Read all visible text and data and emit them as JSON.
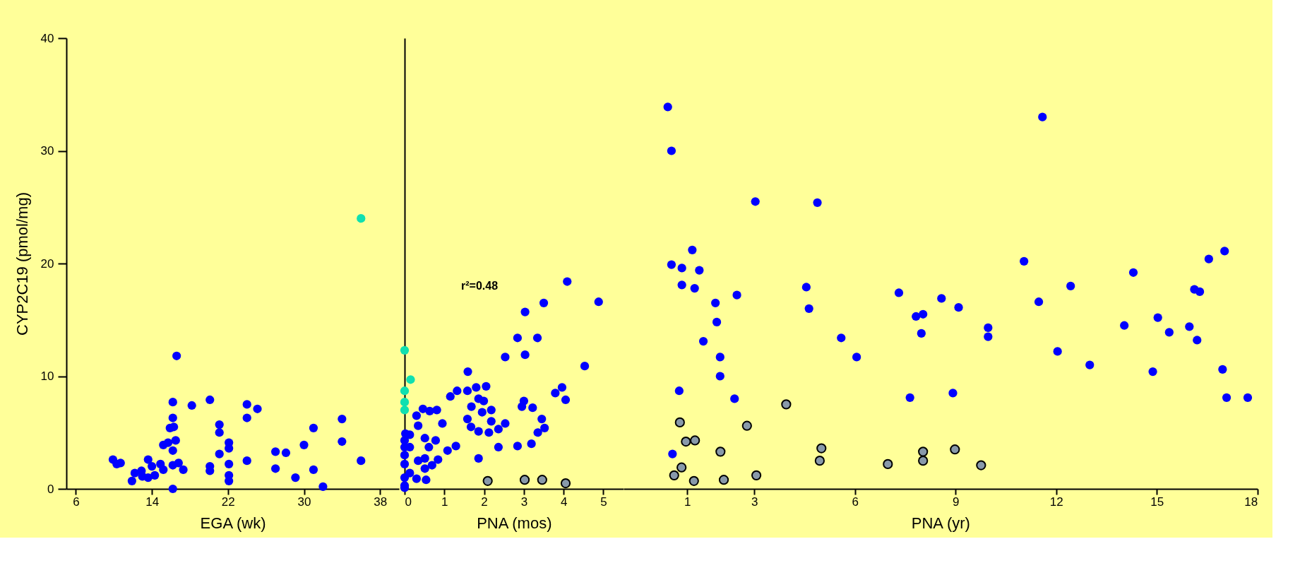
{
  "chart_data": [
    {
      "type": "scatter",
      "xlabel": "EGA (wk)",
      "ylabel": "CYP2C19 (pmol/mg)",
      "xlim": [
        5,
        40
      ],
      "xticks": [
        6,
        14,
        22,
        30,
        38
      ],
      "ylim": [
        0,
        40
      ],
      "yticks": [
        0,
        10,
        20,
        30,
        40
      ],
      "marker": "circle",
      "series": [
        {
          "color": "#0000ff",
          "x": [
            9.9,
            10.7,
            10.3,
            11.9,
            12.2,
            12.9,
            13.0,
            13.6,
            13.6,
            14.3,
            14.0,
            14.9,
            15.2,
            15.2,
            15.7,
            16.2,
            16.2,
            15.9,
            16.3,
            16.5,
            16.2,
            16.2,
            16.2,
            16.8,
            16.6,
            17.3,
            18.2,
            20.1,
            20.1,
            20.1,
            21.1,
            21.1,
            21.1,
            22.1,
            22.1,
            22.1,
            22.1,
            22.1,
            24.0,
            24.0,
            25.1,
            24.0,
            27.0,
            27.0,
            28.1,
            29.1,
            30.0,
            31.0,
            31.0,
            32.0,
            34.0,
            34.0,
            36.0
          ],
          "values": [
            2.6,
            2.3,
            2.2,
            0.7,
            1.4,
            1.6,
            1.1,
            2.6,
            1.0,
            1.2,
            2.0,
            2.2,
            1.7,
            3.9,
            4.1,
            7.7,
            6.3,
            5.4,
            5.5,
            4.3,
            3.4,
            2.1,
            0.0,
            2.3,
            11.8,
            1.7,
            7.4,
            7.9,
            2.0,
            1.6,
            5.7,
            5.0,
            3.1,
            4.1,
            3.6,
            2.2,
            1.2,
            0.7,
            7.5,
            6.3,
            7.1,
            2.5,
            3.3,
            1.8,
            3.2,
            1.0,
            3.9,
            5.4,
            1.7,
            0.2,
            6.2,
            4.2,
            2.5
          ]
        },
        {
          "color": "#10e0b0",
          "x": [
            36.0
          ],
          "values": [
            24.0
          ]
        }
      ]
    },
    {
      "type": "scatter",
      "xlabel": "PNA (mos)",
      "xlim": [
        0,
        5.5
      ],
      "xticks": [
        0,
        1,
        2,
        3,
        4,
        5
      ],
      "ylim": [
        0,
        40
      ],
      "tick_labels": "x",
      "marker": "circle",
      "annotations": [
        "r²=0.48"
      ],
      "series": [
        {
          "color": "#0000ff",
          "x": [
            0.02,
            0,
            0.13,
            0,
            0.13,
            0,
            0,
            0,
            0,
            0,
            0.13,
            0.3,
            0.3,
            0.34,
            0.46,
            0.63,
            0.81,
            0.95,
            0.51,
            0.61,
            0.78,
            0.34,
            0.51,
            0.51,
            0.69,
            0.84,
            0.54,
            1.08,
            1.29,
            1.15,
            1.32,
            1.59,
            1.58,
            1.8,
            2.05,
            1.86,
            1.99,
            1.68,
            1.95,
            2.18,
            1.58,
            1.67,
            1.86,
            2.18,
            2.12,
            2.36,
            2.53,
            1.86,
            2.36,
            2.53,
            2.84,
            3.03,
            3.03,
            3.34,
            3.5,
            2.84,
            3.0,
            2.95,
            3.22,
            3.45,
            3.52,
            3.35,
            3.19,
            3.79,
            3.96,
            4.05,
            4.09,
            4.53,
            4.88
          ],
          "values": [
            4.9,
            4.3,
            4.8,
            3.7,
            3.7,
            3.0,
            2.2,
            1.0,
            0.3,
            0.1,
            1.4,
            0.9,
            6.5,
            5.6,
            7.1,
            6.9,
            7.0,
            5.8,
            4.5,
            3.7,
            4.3,
            2.5,
            2.7,
            1.8,
            2.1,
            2.6,
            0.8,
            3.4,
            3.8,
            8.2,
            8.7,
            10.4,
            8.7,
            9.0,
            9.1,
            8.0,
            7.8,
            7.3,
            6.8,
            7.0,
            6.2,
            5.5,
            5.1,
            6.0,
            5.0,
            5.3,
            5.8,
            2.7,
            3.7,
            11.7,
            13.4,
            15.7,
            11.9,
            13.4,
            16.5,
            3.8,
            7.8,
            7.3,
            7.2,
            6.2,
            5.4,
            5.0,
            4.0,
            8.5,
            9.0,
            7.9,
            18.4,
            10.9,
            16.6
          ]
        },
        {
          "color": "#10e0b0",
          "x": [
            0,
            0.15,
            0,
            0,
            0
          ],
          "values": [
            12.3,
            9.7,
            8.7,
            7.7,
            7.0
          ]
        },
        {
          "color": "#8899aa",
          "x": [
            2.09,
            3.02,
            3.46,
            4.05
          ],
          "values": [
            0.7,
            0.8,
            0.8,
            0.5
          ]
        }
      ]
    },
    {
      "type": "scatter",
      "xlabel": "PNA (yr)",
      "xlim": [
        -0.9,
        18
      ],
      "xticks": [
        1,
        3,
        6,
        9,
        12,
        15,
        18
      ],
      "ylim": [
        0,
        40
      ],
      "tick_labels": "x",
      "marker": "circle",
      "series": [
        {
          "color": "#0000ff",
          "x": [
            0.42,
            0.53,
            0.53,
            0.84,
            0.84,
            1.15,
            1.36,
            1.22,
            1.84,
            1.88,
            1.48,
            1.98,
            1.98,
            2.48,
            2.41,
            0.76,
            0.56,
            3.03,
            4.88,
            4.55,
            4.63,
            5.59,
            6.05,
            7.31,
            7.82,
            8.03,
            7.98,
            8.58,
            9.09,
            7.64,
            8.92,
            9.97,
            9.97,
            11.04,
            11.59,
            11.48,
            12.43,
            12.04,
            13.0,
            14.03,
            14.3,
            14.88,
            15.03,
            15.37,
            15.97,
            16.12,
            16.28,
            16.2,
            16.55,
            17.02,
            16.96,
            17.08,
            17.71
          ],
          "values": [
            33.9,
            30.0,
            19.9,
            19.6,
            18.1,
            21.2,
            19.4,
            17.8,
            16.5,
            14.8,
            13.1,
            11.7,
            10.0,
            17.2,
            8.0,
            8.7,
            3.1,
            25.5,
            25.4,
            17.9,
            16.0,
            13.4,
            11.7,
            17.4,
            15.3,
            15.5,
            13.8,
            16.9,
            16.1,
            8.1,
            8.5,
            14.3,
            13.5,
            20.2,
            33.0,
            16.6,
            18.0,
            12.2,
            11.0,
            14.5,
            19.2,
            10.4,
            15.2,
            13.9,
            14.4,
            17.7,
            17.5,
            13.2,
            20.4,
            21.1,
            10.6,
            8.1,
            8.1
          ]
        },
        {
          "color": "#8899aa",
          "x": [
            0.78,
            0.96,
            1.23,
            0.83,
            0.61,
            1.2,
            1.99,
            2.09,
            2.78,
            3.06,
            3.95,
            5.0,
            4.95,
            6.98,
            8.03,
            8.03,
            8.98,
            9.76
          ],
          "values": [
            5.9,
            4.2,
            4.3,
            1.9,
            1.2,
            0.7,
            3.3,
            0.8,
            5.6,
            1.2,
            7.5,
            3.6,
            2.5,
            2.2,
            3.3,
            2.5,
            3.5,
            2.1
          ]
        }
      ]
    }
  ]
}
